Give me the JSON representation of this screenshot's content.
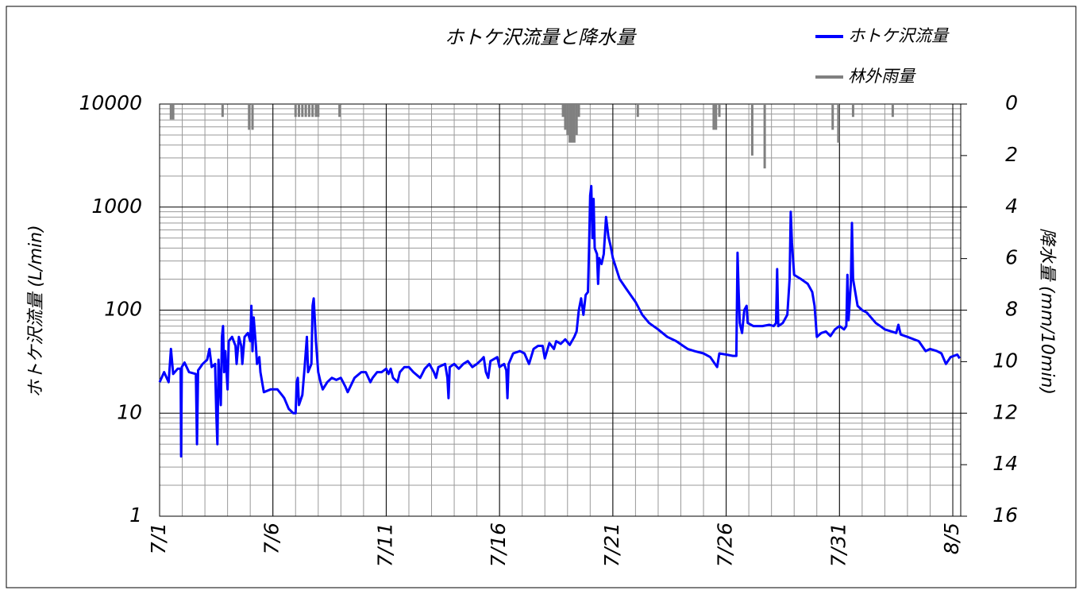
{
  "chart_data": {
    "type": "line",
    "title": "ホトケ沢流量と降水量",
    "y_label": "ホトケ沢流量 (L/min)",
    "y2_label": "降水量 (mm/10min)",
    "yscale": "log",
    "ylim": [
      1,
      10000
    ],
    "yticks": [
      1,
      10,
      100,
      1000,
      10000
    ],
    "y2lim": [
      16,
      0
    ],
    "y2ticks": [
      0,
      2,
      4,
      6,
      8,
      10,
      12,
      14,
      16
    ],
    "xlim": [
      0,
      35.35
    ],
    "xticks": [
      {
        "value": 0,
        "label": "7/1"
      },
      {
        "value": 5,
        "label": "7/6"
      },
      {
        "value": 10,
        "label": "7/11"
      },
      {
        "value": 15,
        "label": "7/16"
      },
      {
        "value": 20,
        "label": "7/21"
      },
      {
        "value": 25,
        "label": "7/26"
      },
      {
        "value": 30,
        "label": "7/31"
      },
      {
        "value": 35,
        "label": "8/5"
      }
    ],
    "grid": true,
    "legend": "top-right",
    "series": [
      {
        "name": "ホトケ沢流量",
        "color": "#0000ff",
        "type": "line",
        "axis": "y",
        "x": [
          0,
          0.2,
          0.4,
          0.5,
          0.6,
          0.8,
          0.93,
          0.95,
          0.98,
          1.1,
          1.3,
          1.6,
          1.65,
          1.7,
          1.9,
          2.1,
          2.2,
          2.3,
          2.45,
          2.5,
          2.55,
          2.6,
          2.7,
          2.75,
          2.8,
          2.85,
          2.9,
          3.0,
          3.05,
          3.2,
          3.35,
          3.4,
          3.5,
          3.6,
          3.65,
          3.75,
          3.9,
          4.0,
          4.05,
          4.1,
          4.15,
          4.25,
          4.3,
          4.4,
          4.45,
          4.6,
          4.9,
          5.2,
          5.4,
          5.5,
          5.7,
          5.9,
          6.0,
          6.05,
          6.1,
          6.15,
          6.3,
          6.4,
          6.5,
          6.55,
          6.7,
          6.75,
          6.8,
          6.9,
          7.0,
          7.1,
          7.2,
          7.4,
          7.6,
          7.8,
          8.0,
          8.2,
          8.3,
          8.6,
          8.9,
          9.1,
          9.3,
          9.4,
          9.6,
          9.8,
          10.0,
          10.1,
          10.2,
          10.3,
          10.5,
          10.6,
          10.8,
          11.0,
          11.2,
          11.5,
          11.7,
          11.9,
          12.1,
          12.2,
          12.3,
          12.6,
          12.7,
          12.75,
          12.8,
          13.0,
          13.2,
          13.4,
          13.6,
          13.8,
          14.0,
          14.2,
          14.3,
          14.4,
          14.5,
          14.6,
          14.9,
          15.0,
          15.2,
          15.3,
          15.35,
          15.4,
          15.6,
          15.9,
          16.1,
          16.3,
          16.5,
          16.7,
          16.9,
          17.0,
          17.2,
          17.4,
          17.5,
          17.7,
          17.9,
          18.1,
          18.3,
          18.4,
          18.5,
          18.6,
          18.7,
          18.8,
          18.9,
          18.95,
          19.0,
          19.05,
          19.1,
          19.15,
          19.2,
          19.3,
          19.35,
          19.4,
          19.5,
          19.6,
          19.7,
          19.8,
          19.9,
          20.0,
          20.3,
          20.6,
          21.0,
          21.3,
          21.6,
          22.0,
          22.4,
          22.8,
          23.1,
          23.3,
          23.6,
          24.0,
          24.3,
          24.6,
          24.7,
          25.0,
          25.3,
          25.45,
          25.5,
          25.55,
          25.6,
          25.7,
          25.8,
          25.9,
          25.95,
          26.2,
          26.6,
          26.9,
          27.1,
          27.2,
          27.25,
          27.3,
          27.5,
          27.7,
          27.8,
          27.85,
          27.9,
          28.0,
          28.3,
          28.6,
          28.8,
          28.9,
          29.0,
          29.2,
          29.4,
          29.6,
          29.8,
          30.0,
          30.2,
          30.3,
          30.35,
          30.4,
          30.5,
          30.55,
          30.6,
          30.8,
          31.0,
          31.2,
          31.6,
          31.8,
          32.0,
          32.3,
          32.5,
          32.6,
          32.7,
          33.0,
          33.5,
          33.8,
          34.0,
          34.3,
          34.5,
          34.7,
          34.9,
          35.2,
          35.3
        ],
        "values": [
          20,
          25,
          20,
          42,
          24,
          27,
          27,
          3.8,
          28,
          31,
          25,
          24,
          5,
          26,
          30,
          33,
          42,
          28,
          30,
          10,
          5,
          33,
          12,
          55,
          70,
          25,
          40,
          17,
          50,
          55,
          45,
          30,
          55,
          45,
          30,
          55,
          60,
          50,
          110,
          40,
          85,
          45,
          30,
          35,
          25,
          16,
          17,
          17,
          15,
          14,
          11,
          10,
          10,
          20,
          22,
          12,
          15,
          28,
          55,
          25,
          30,
          110,
          130,
          50,
          25,
          20,
          17,
          20,
          22,
          21,
          22,
          18,
          16,
          22,
          25,
          25,
          20,
          22,
          25,
          25,
          27,
          24,
          27,
          22,
          20,
          25,
          28,
          28,
          25,
          22,
          27,
          30,
          25,
          22,
          28,
          30,
          22,
          14,
          28,
          30,
          27,
          30,
          32,
          28,
          30,
          33,
          35,
          25,
          22,
          32,
          35,
          28,
          30,
          26,
          14,
          30,
          38,
          40,
          38,
          30,
          42,
          45,
          45,
          34,
          48,
          42,
          50,
          47,
          52,
          46,
          55,
          62,
          100,
          130,
          90,
          140,
          150,
          400,
          1300,
          1600,
          500,
          1200,
          400,
          350,
          180,
          320,
          280,
          350,
          800,
          520,
          420,
          320,
          200,
          160,
          120,
          90,
          75,
          65,
          55,
          50,
          45,
          42,
          40,
          38,
          35,
          28,
          38,
          37,
          36,
          36,
          360,
          150,
          75,
          60,
          100,
          110,
          75,
          70,
          70,
          72,
          70,
          75,
          250,
          70,
          75,
          90,
          200,
          900,
          450,
          220,
          200,
          180,
          150,
          110,
          55,
          60,
          62,
          56,
          65,
          70,
          65,
          70,
          220,
          80,
          180,
          700,
          200,
          110,
          100,
          95,
          75,
          70,
          65,
          62,
          60,
          72,
          58,
          55,
          50,
          40,
          42,
          40,
          38,
          30,
          35,
          37,
          34
        ]
      },
      {
        "name": "林外雨量",
        "color": "#808080",
        "type": "bar",
        "axis": "y2",
        "x": [
          0.5,
          0.6,
          2.78,
          3.95,
          4.1,
          6.0,
          6.15,
          6.3,
          6.45,
          6.6,
          6.75,
          6.9,
          7.0,
          7.94,
          17.8,
          17.9,
          18.0,
          18.1,
          18.2,
          18.3,
          18.4,
          18.5,
          21.1,
          24.45,
          24.55,
          24.7,
          26.15,
          26.7,
          29.7,
          29.95,
          30.6,
          32.35
        ],
        "values": [
          0.6,
          0.6,
          0.5,
          1.0,
          1.0,
          0.5,
          0.5,
          0.5,
          0.5,
          0.5,
          0.5,
          0.5,
          0.5,
          0.5,
          0.5,
          1.0,
          1.2,
          1.5,
          1.5,
          1.5,
          1.2,
          0.5,
          0.5,
          1.0,
          1.0,
          0.5,
          2.0,
          2.5,
          1.0,
          1.5,
          0.5,
          0.5
        ]
      }
    ]
  }
}
